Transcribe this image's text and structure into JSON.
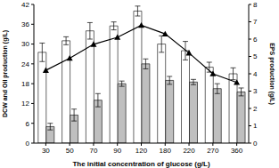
{
  "chart_data": {
    "type": "bar",
    "x_label": "The initial concentration of glucose (g/L)",
    "y_label": "DCW and Oil production (g/L)",
    "y2_label": "EPS production (g/L)",
    "categories": [
      "30",
      "50",
      "70",
      "90",
      "120",
      "180",
      "220",
      "270",
      "360"
    ],
    "ylim": [
      0,
      42
    ],
    "yticks": [
      0,
      6,
      12,
      18,
      24,
      30,
      36,
      42
    ],
    "y2lim": [
      0,
      8
    ],
    "y2ticks": [
      0,
      1,
      2,
      3,
      4,
      5,
      6,
      7,
      8
    ],
    "series": [
      {
        "type": "bar",
        "color": "#ffffff",
        "values": [
          27.5,
          31,
          34,
          35.5,
          40,
          30,
          28,
          23,
          21
        ],
        "error": [
          2.8,
          1.2,
          2.5,
          1.2,
          1.5,
          2.5,
          2.8,
          1.5,
          1.8
        ]
      },
      {
        "type": "bar",
        "color": "#bfbfbf",
        "values": [
          5,
          8.5,
          13,
          18,
          24,
          19,
          18.5,
          16.5,
          15.5
        ],
        "error": [
          1,
          1.8,
          2,
          0.8,
          1.5,
          1.2,
          0.8,
          1.5,
          1.2
        ]
      },
      {
        "type": "line",
        "color": "#000000",
        "marker": "triangle",
        "axis": "y2",
        "values": [
          4.2,
          4.9,
          5.7,
          6.1,
          6.8,
          6.3,
          5.2,
          4.0,
          3.5
        ]
      }
    ]
  }
}
